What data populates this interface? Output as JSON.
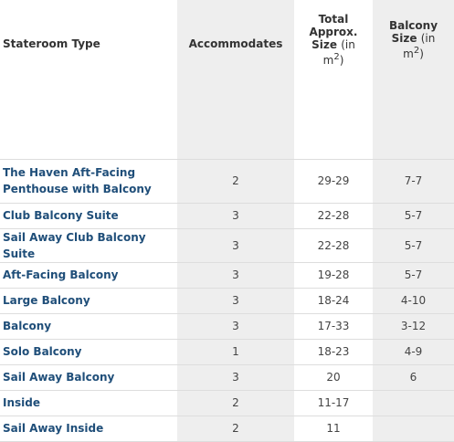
{
  "headers": {
    "type": "Stateroom Type",
    "accommodates": "Accommodates",
    "size_line1": "Total",
    "size_line2": "Approx.",
    "size_line3": "Size",
    "size_unit_a": "(in",
    "size_unit_b": "m",
    "size_unit_sup": "2",
    "size_unit_c": ")",
    "balcony_line1": "Balcony",
    "balcony_line2": "Size",
    "balcony_unit_a": "(in",
    "balcony_unit_b": "m",
    "balcony_unit_sup": "2",
    "balcony_unit_c": ")"
  },
  "rows": [
    {
      "type": "The Haven Aft-Facing Penthouse with Balcony",
      "accommodates": "2",
      "size": "29-29",
      "balcony": "7-7"
    },
    {
      "type": "Club Balcony Suite",
      "accommodates": "3",
      "size": "22-28",
      "balcony": "5-7"
    },
    {
      "type": "Sail Away Club Balcony Suite",
      "accommodates": "3",
      "size": "22-28",
      "balcony": "5-7"
    },
    {
      "type": "Aft-Facing Balcony",
      "accommodates": "3",
      "size": "19-28",
      "balcony": "5-7"
    },
    {
      "type": "Large Balcony",
      "accommodates": "3",
      "size": "18-24",
      "balcony": "4-10"
    },
    {
      "type": "Balcony",
      "accommodates": "3",
      "size": "17-33",
      "balcony": "3-12"
    },
    {
      "type": "Solo Balcony",
      "accommodates": "1",
      "size": "18-23",
      "balcony": "4-9"
    },
    {
      "type": "Sail Away Balcony",
      "accommodates": "3",
      "size": "20",
      "balcony": "6"
    },
    {
      "type": "Inside",
      "accommodates": "2",
      "size": "11-17",
      "balcony": ""
    },
    {
      "type": "Sail Away Inside",
      "accommodates": "2",
      "size": "11",
      "balcony": ""
    }
  ],
  "colors": {
    "link": "#1f4e79",
    "shade": "#eeeeee",
    "border": "#dddddd"
  }
}
